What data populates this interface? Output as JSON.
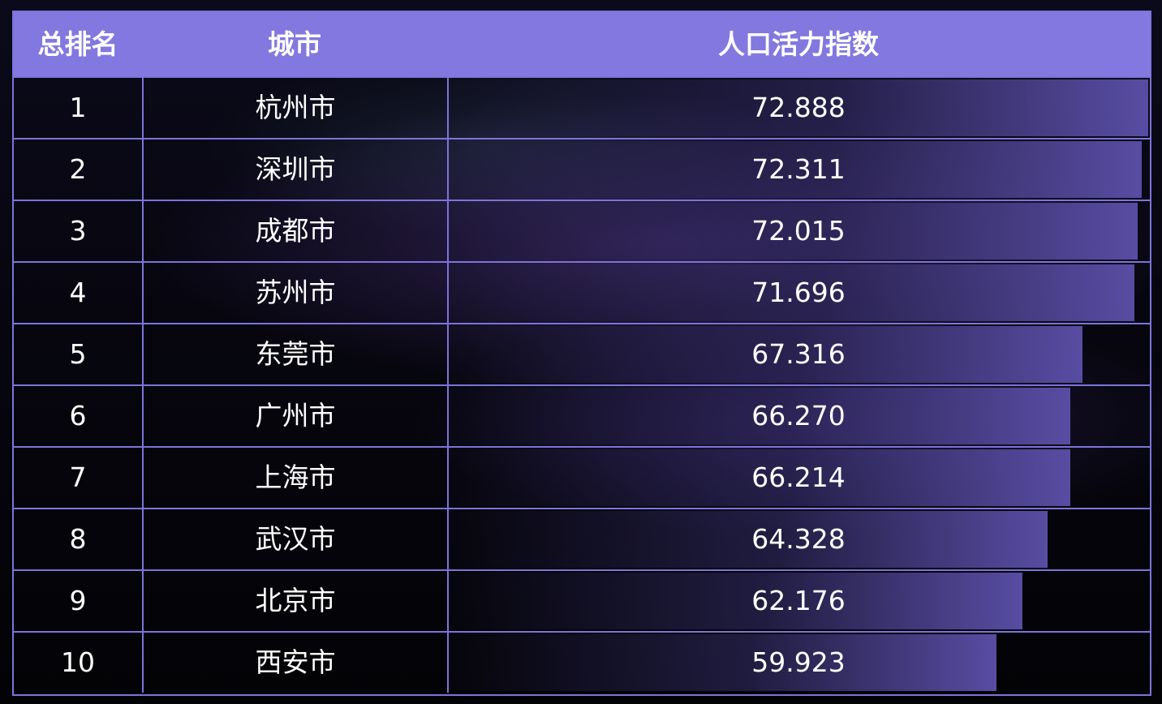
{
  "header": {
    "rank": "总排名",
    "city": "城市",
    "index": "人口活力指数"
  },
  "chart_data": {
    "type": "table",
    "columns": [
      "总排名",
      "城市",
      "人口活力指数"
    ],
    "rows": [
      {
        "rank": "1",
        "city": "杭州市",
        "index": "72.888",
        "value": 72.888
      },
      {
        "rank": "2",
        "city": "深圳市",
        "index": "72.311",
        "value": 72.311
      },
      {
        "rank": "3",
        "city": "成都市",
        "index": "72.015",
        "value": 72.015
      },
      {
        "rank": "4",
        "city": "苏州市",
        "index": "71.696",
        "value": 71.696
      },
      {
        "rank": "5",
        "city": "东莞市",
        "index": "67.316",
        "value": 67.316
      },
      {
        "rank": "6",
        "city": "广州市",
        "index": "66.270",
        "value": 66.27
      },
      {
        "rank": "7",
        "city": "上海市",
        "index": "66.214",
        "value": 66.214
      },
      {
        "rank": "8",
        "city": "武汉市",
        "index": "64.328",
        "value": 64.328
      },
      {
        "rank": "9",
        "city": "北京市",
        "index": "62.176",
        "value": 62.176
      },
      {
        "rank": "10",
        "city": "西安市",
        "index": "59.923",
        "value": 59.923
      }
    ],
    "bar_scale_max": 72.888
  }
}
